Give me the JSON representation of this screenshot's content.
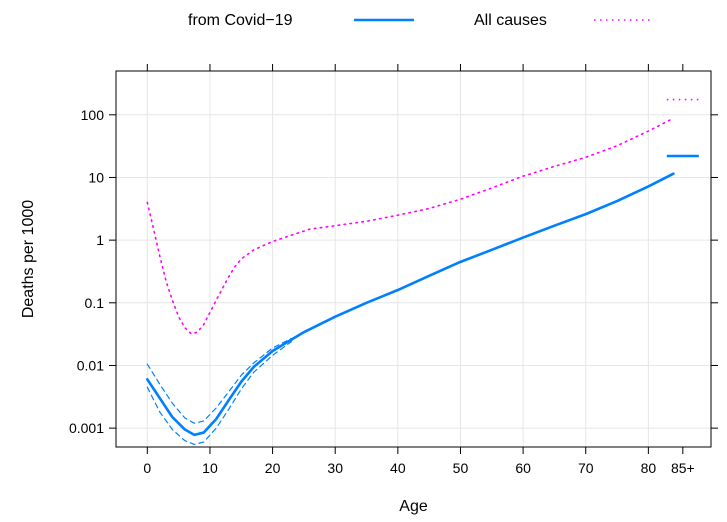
{
  "chart_data": {
    "type": "line",
    "title": "",
    "xlabel": "Age",
    "ylabel": "Deaths per 1000",
    "y_scale": "log",
    "xlim": [
      -5,
      90
    ],
    "ylim": [
      0.0005,
      500
    ],
    "grid": true,
    "legend_position": "top",
    "x_ticks": [
      0,
      10,
      20,
      30,
      40,
      50,
      60,
      70,
      80
    ],
    "x_tick_labels": [
      "0",
      "10",
      "20",
      "30",
      "40",
      "50",
      "60",
      "70",
      "80"
    ],
    "extra_x_tick": {
      "x": 85.5,
      "label": "85+"
    },
    "y_ticks": [
      0.001,
      0.01,
      0.1,
      1,
      10,
      100
    ],
    "y_tick_labels": [
      "0.001",
      "0.01",
      "0.1",
      "1",
      "10",
      "100"
    ],
    "legend": [
      {
        "label": "from Covid−19",
        "color": "#0080ff",
        "style": "solid"
      },
      {
        "label": "All causes",
        "color": "#ff00ff",
        "style": "dotted"
      }
    ],
    "series": [
      {
        "name": "from Covid−19",
        "color": "#0080ff",
        "style": "solid",
        "x": [
          0,
          2,
          4,
          6,
          7.5,
          9,
          11,
          13,
          15,
          17,
          20,
          25,
          30,
          35,
          40,
          45,
          50,
          55,
          60,
          65,
          70,
          75,
          80,
          84
        ],
        "y": [
          0.006,
          0.003,
          0.0015,
          0.00095,
          0.00078,
          0.00085,
          0.0014,
          0.0028,
          0.0055,
          0.0095,
          0.017,
          0.034,
          0.06,
          0.1,
          0.16,
          0.27,
          0.45,
          0.7,
          1.1,
          1.7,
          2.6,
          4.2,
          7.2,
          11.5
        ],
        "x_85plus": 85.5,
        "y_85plus": 22
      },
      {
        "name": "CI upper",
        "color": "#0080ff",
        "style": "dashed",
        "x": [
          0,
          2,
          4,
          6,
          7.5,
          9,
          11,
          13,
          15,
          17,
          20,
          23
        ],
        "y": [
          0.0105,
          0.005,
          0.0025,
          0.00145,
          0.0012,
          0.0013,
          0.0021,
          0.0038,
          0.007,
          0.011,
          0.019,
          0.027
        ]
      },
      {
        "name": "CI lower",
        "color": "#0080ff",
        "style": "dashed",
        "x": [
          0,
          2,
          4,
          6,
          7.5,
          9,
          11,
          13,
          15,
          17,
          20,
          23
        ],
        "y": [
          0.0045,
          0.0018,
          0.00095,
          0.00063,
          0.00055,
          0.0006,
          0.001,
          0.002,
          0.0042,
          0.0078,
          0.0145,
          0.024
        ]
      },
      {
        "name": "All causes",
        "color": "#ff00ff",
        "style": "dotted",
        "x": [
          0,
          1,
          2,
          3,
          4,
          5,
          6,
          7,
          8,
          9,
          10,
          11,
          12,
          13,
          14,
          15,
          17,
          20,
          23,
          26,
          30,
          35,
          40,
          45,
          50,
          55,
          60,
          65,
          70,
          75,
          80,
          84
        ],
        "y": [
          4,
          1.5,
          0.55,
          0.22,
          0.11,
          0.06,
          0.04,
          0.032,
          0.034,
          0.045,
          0.07,
          0.11,
          0.17,
          0.26,
          0.38,
          0.5,
          0.7,
          0.95,
          1.2,
          1.5,
          1.7,
          2,
          2.5,
          3.2,
          4.5,
          6.8,
          10.5,
          15,
          21,
          32,
          55,
          88
        ],
        "x_85plus": 85.5,
        "y_85plus": 175
      }
    ]
  }
}
